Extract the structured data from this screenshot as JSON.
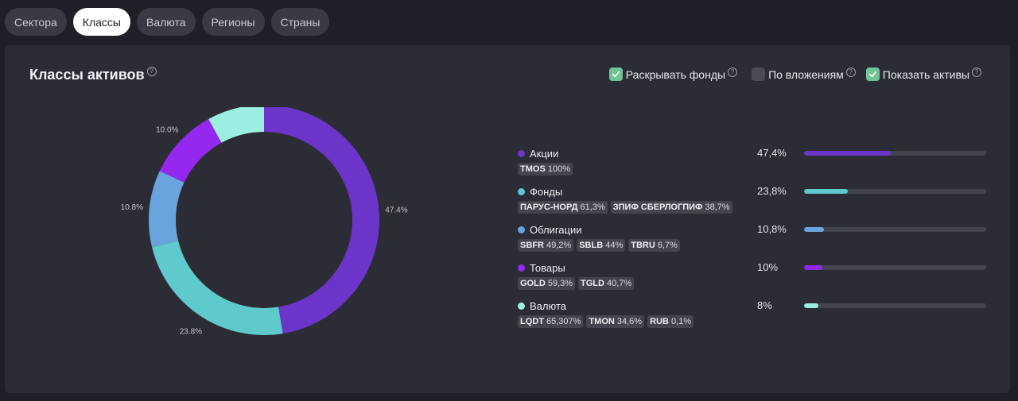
{
  "tabs": [
    {
      "label": "Сектора",
      "active": false
    },
    {
      "label": "Классы",
      "active": true
    },
    {
      "label": "Валюта",
      "active": false
    },
    {
      "label": "Регионы",
      "active": false
    },
    {
      "label": "Страны",
      "active": false
    }
  ],
  "card": {
    "title": "Классы активов",
    "options": [
      {
        "label": "Раскрывать фонды",
        "checked": true
      },
      {
        "label": "По вложениям",
        "checked": false
      },
      {
        "label": "Показать активы",
        "checked": true
      }
    ]
  },
  "colors": {
    "Акции": "#6c35c9",
    "Фонды": "#5ecacb",
    "Облигации": "#6aa4de",
    "Товары": "#9428ee",
    "Валюта": "#9ceee0"
  },
  "chart_data": {
    "type": "pie",
    "slices": [
      {
        "name": "Акции",
        "value": 47.4,
        "label": "47.4%",
        "color": "#6c35c9"
      },
      {
        "name": "Фонды",
        "value": 23.8,
        "label": "23.8%",
        "color": "#5ecacb"
      },
      {
        "name": "Облигации",
        "value": 10.8,
        "label": "10.8%",
        "color": "#6aa4de"
      },
      {
        "name": "Товары",
        "value": 10.0,
        "label": "10.0%",
        "color": "#9428ee"
      },
      {
        "name": "Валюта",
        "value": 8.0,
        "label": "8.0%",
        "color": "#9ceee0"
      }
    ]
  },
  "legend": [
    {
      "name": "Акции",
      "pct": "47,4%",
      "fill": 0.474,
      "color": "#6c35c9",
      "chips": [
        {
          "ticker": "TMOS",
          "share": "100%"
        }
      ]
    },
    {
      "name": "Фонды",
      "pct": "23,8%",
      "fill": 0.238,
      "color": "#5ecacb",
      "chips": [
        {
          "ticker": "ПАРУС-НОРД",
          "share": "61,3%"
        },
        {
          "ticker": "ЗПИФ СБЕРЛОГПИФ",
          "share": "38,7%"
        }
      ]
    },
    {
      "name": "Облигации",
      "pct": "10,8%",
      "fill": 0.108,
      "color": "#6aa4de",
      "chips": [
        {
          "ticker": "SBFR",
          "share": "49,2%"
        },
        {
          "ticker": "SBLB",
          "share": "44%"
        },
        {
          "ticker": "TBRU",
          "share": "6,7%"
        }
      ]
    },
    {
      "name": "Товары",
      "pct": "10%",
      "fill": 0.1,
      "color": "#9428ee",
      "chips": [
        {
          "ticker": "GOLD",
          "share": "59,3%"
        },
        {
          "ticker": "TGLD",
          "share": "40,7%"
        }
      ]
    },
    {
      "name": "Валюта",
      "pct": "8%",
      "fill": 0.08,
      "color": "#9ceee0",
      "chips": [
        {
          "ticker": "LQDT",
          "share": "65,307%"
        },
        {
          "ticker": "TMON",
          "share": "34,6%"
        },
        {
          "ticker": "RUB",
          "share": "0,1%"
        }
      ]
    }
  ]
}
